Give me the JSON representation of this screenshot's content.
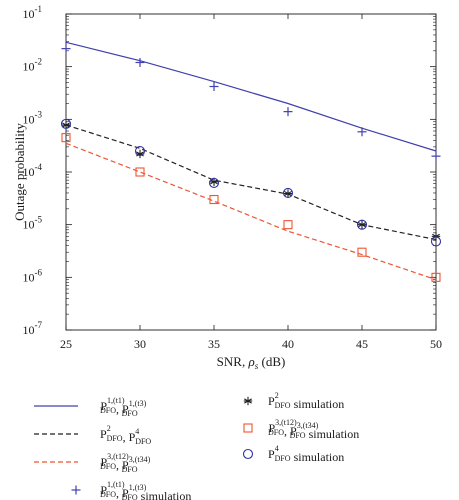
{
  "chart_data": {
    "type": "line",
    "title": "",
    "xlabel": "SNR, ρs (dB)",
    "xlabel_parts": {
      "main": "SNR, ",
      "symbol": "ρ",
      "sub": "s",
      "unit": " (dB)"
    },
    "ylabel": "Outage probability",
    "x": [
      25,
      30,
      35,
      40,
      45,
      50
    ],
    "xlim": [
      25,
      50
    ],
    "ylim": [
      1e-07,
      0.1
    ],
    "yscale": "log",
    "grid": false,
    "x_tick_labels": [
      "25",
      "30",
      "35",
      "40",
      "45",
      "50"
    ],
    "y_ticks": [
      {
        "value": 1e-07,
        "base": "10",
        "exp": "-7"
      },
      {
        "value": 1e-06,
        "base": "10",
        "exp": "-6"
      },
      {
        "value": 1e-05,
        "base": "10",
        "exp": "-5"
      },
      {
        "value": 0.0001,
        "base": "10",
        "exp": "-4"
      },
      {
        "value": 0.001,
        "base": "10",
        "exp": "-3"
      },
      {
        "value": 0.01,
        "base": "10",
        "exp": "-2"
      },
      {
        "value": 0.1,
        "base": "10",
        "exp": "-1"
      }
    ],
    "legend_position": "below",
    "series": [
      {
        "name": "P_DFO^{1,(t1)}, P_DFO^{1,(t3)}",
        "kind": "analytic",
        "color": "#4040b0",
        "dash": "solid",
        "values": [
          0.029,
          0.013,
          0.0052,
          0.002,
          0.00068,
          0.00025
        ]
      },
      {
        "name": "P_DFO^{2}, P_DFO^{4}",
        "kind": "analytic",
        "color": "#222222",
        "dash": "dashed",
        "values": [
          0.00078,
          0.00028,
          7e-05,
          3.8e-05,
          1e-05,
          5.2e-06
        ]
      },
      {
        "name": "P_DFO^{3,(t12)}, P_DFO^{3,(t34)}",
        "kind": "analytic",
        "color": "#ee5533",
        "dash": "dashed",
        "values": [
          0.00035,
          0.0001,
          2.8e-05,
          7.5e-06,
          2.7e-06,
          9e-07
        ]
      },
      {
        "name": "P_DFO^{1,(t1)}, P_DFO^{1,(t3)} simulation",
        "kind": "simulation",
        "color": "#4040b0",
        "marker": "plus",
        "values": [
          0.022,
          0.012,
          0.0042,
          0.0014,
          0.00058,
          0.0002
        ]
      },
      {
        "name": "P_DFO^{2} simulation",
        "kind": "simulation",
        "color": "#222222",
        "marker": "asterisk",
        "values": [
          0.00078,
          0.00022,
          6.5e-05,
          3.9e-05,
          1e-05,
          6e-06
        ]
      },
      {
        "name": "P_DFO^{3,(t12)}, P_DFO^{3,(t34)} simulation",
        "kind": "simulation",
        "color": "#ee5533",
        "marker": "square",
        "values": [
          0.00045,
          0.0001,
          3e-05,
          1e-05,
          3e-06,
          1e-06
        ]
      },
      {
        "name": "P_DFO^{4} simulation",
        "kind": "simulation",
        "color": "#3030a0",
        "marker": "circle",
        "values": [
          0.00082,
          0.00025,
          6.2e-05,
          4e-05,
          1e-05,
          4.8e-06
        ]
      }
    ],
    "legend": [
      {
        "series": 0,
        "col": 0,
        "row": 0,
        "parts": [
          {
            "t": "P"
          },
          {
            "sub": "DFO",
            "sup": "1,(t",
            "sup2": "1",
            "sup3": ")"
          },
          {
            "t": ", P"
          },
          {
            "sub": "DFO",
            "sup": "1,(t",
            "sup2": "3",
            "sup3": ")"
          }
        ]
      },
      {
        "series": 1,
        "col": 0,
        "row": 1,
        "parts": [
          {
            "t": "P"
          },
          {
            "sub": "DFO",
            "sup": "2"
          },
          {
            "t": ", P"
          },
          {
            "sub": "DFO",
            "sup": "4"
          }
        ]
      },
      {
        "series": 2,
        "col": 0,
        "row": 2,
        "parts": [
          {
            "t": "P"
          },
          {
            "sub": "DFO",
            "sup": "3,(t",
            "sup2": "12",
            "sup3": ")"
          },
          {
            "t": ", P"
          },
          {
            "sub": "DFO",
            "sup": "3,(t",
            "sup2": "34",
            "sup3": ")"
          }
        ]
      },
      {
        "series": 3,
        "col": 0,
        "row": 3,
        "parts": [
          {
            "t": "P"
          },
          {
            "sub": "DFO",
            "sup": "1,(t",
            "sup2": "1",
            "sup3": ")"
          },
          {
            "t": ", P"
          },
          {
            "sub": "DFO",
            "sup": "1,(t",
            "sup2": "3",
            "sup3": ")"
          },
          {
            "t": " simulation"
          }
        ]
      },
      {
        "series": 4,
        "col": 1,
        "row": 0,
        "parts": [
          {
            "t": "P"
          },
          {
            "sub": "DFO",
            "sup": "2"
          },
          {
            "t": " simulation"
          }
        ]
      },
      {
        "series": 5,
        "col": 1,
        "row": 1,
        "parts": [
          {
            "t": "P"
          },
          {
            "sub": "DFO",
            "sup": "3,(t",
            "sup2": "12",
            "sup3": ")"
          },
          {
            "t": ", P"
          },
          {
            "sub": "DFO",
            "sup": "3,(t",
            "sup2": "34",
            "sup3": ")"
          },
          {
            "t": " simulation"
          }
        ]
      },
      {
        "series": 6,
        "col": 1,
        "row": 2,
        "parts": [
          {
            "t": "P"
          },
          {
            "sub": "DFO",
            "sup": "4"
          },
          {
            "t": " simulation"
          }
        ]
      }
    ]
  }
}
